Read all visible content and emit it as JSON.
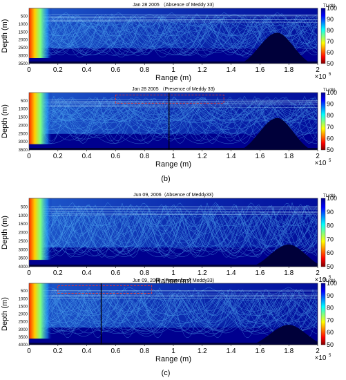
{
  "chart_data": [
    {
      "type": "heatmap",
      "title": "Jan 28 2005 （Absence of Meddy 33)",
      "xlabel": "Range (m)",
      "ylabel": "Depth (m)",
      "xlim": [
        0,
        200000
      ],
      "ylim": [
        0,
        3500
      ],
      "x_ticks": [
        "0",
        "0.2",
        "0.4",
        "0.6",
        "0.8",
        "1",
        "1.2",
        "1.4",
        "1.6",
        "1.8",
        "2"
      ],
      "x_multiplier": "×10",
      "x_multiplier_exp": "5",
      "y_ticks": [
        "500",
        "1000",
        "1500",
        "2000",
        "2500",
        "3000",
        "3500"
      ],
      "colorbar": {
        "label": "TL(db)",
        "ticks": [
          "100",
          "90",
          "80",
          "70",
          "60",
          "50"
        ],
        "range": [
          50,
          100
        ]
      },
      "bathymetry": {
        "seamount_peak_range": 172000,
        "seamount_peak_depth": 1550
      },
      "highlight_box": null,
      "marker_line_range": null
    },
    {
      "type": "heatmap",
      "title": "Jan 28 2005 （Presence of Meddy 33)",
      "xlabel": "Range (m)",
      "ylabel": "Depth (m)",
      "xlim": [
        0,
        200000
      ],
      "ylim": [
        0,
        3500
      ],
      "x_ticks": [
        "0",
        "0.2",
        "0.4",
        "0.6",
        "0.8",
        "1",
        "1.2",
        "1.4",
        "1.6",
        "1.8",
        "2"
      ],
      "x_multiplier": "×10",
      "x_multiplier_exp": "5",
      "y_ticks": [
        "500",
        "1000",
        "1500",
        "2000",
        "2500",
        "3000",
        "3500"
      ],
      "colorbar": {
        "label": "TL(db)",
        "ticks": [
          "100",
          "90",
          "80",
          "70",
          "60",
          "50"
        ],
        "range": [
          50,
          100
        ]
      },
      "bathymetry": {
        "seamount_peak_range": 172000,
        "seamount_peak_depth": 1550
      },
      "highlight_box": {
        "x0": 60000,
        "x1": 135000,
        "y0": 150,
        "y1": 650,
        "color": "#e03030"
      },
      "marker_line_range": 97000
    },
    {
      "type": "heatmap",
      "title": "Jun 09, 2006（Absence of Meddy33)",
      "xlabel": "Range (m)",
      "ylabel": "Depth (m)",
      "xlim": [
        0,
        200000
      ],
      "ylim": [
        0,
        4000
      ],
      "x_ticks": [
        "0",
        "0.2",
        "0.4",
        "0.6",
        "0.8",
        "1",
        "1.2",
        "1.4",
        "1.6",
        "1.8",
        "2"
      ],
      "x_multiplier": "×10",
      "x_multiplier_exp": "5",
      "y_ticks": [
        "500",
        "1000",
        "1500",
        "2000",
        "2500",
        "3000",
        "3500",
        "4000"
      ],
      "colorbar": {
        "label": "TL(db)",
        "ticks": [
          "100",
          "90",
          "80",
          "70",
          "60",
          "50"
        ],
        "range": [
          50,
          100
        ]
      },
      "bathymetry": {
        "seamount_peak_range": 180000,
        "seamount_peak_depth": 2700
      },
      "highlight_box": null,
      "marker_line_range": null
    },
    {
      "type": "heatmap",
      "title": "Jun 09, 2006（Presence of Meddy33)",
      "xlabel": "Range (m)",
      "ylabel": "Depth (m)",
      "xlim": [
        0,
        200000
      ],
      "ylim": [
        0,
        4000
      ],
      "x_ticks": [
        "0",
        "0.2",
        "0.4",
        "0.6",
        "0.8",
        "1",
        "1.2",
        "1.4",
        "1.6",
        "1.8",
        "2"
      ],
      "x_multiplier": "×10",
      "x_multiplier_exp": "5",
      "y_ticks": [
        "500",
        "1000",
        "1500",
        "2000",
        "2500",
        "3000",
        "3500",
        "4000"
      ],
      "colorbar": {
        "label": "TL(db)",
        "ticks": [
          "100",
          "90",
          "80",
          "70",
          "60",
          "50"
        ],
        "range": [
          50,
          100
        ]
      },
      "bathymetry": {
        "seamount_peak_range": 180000,
        "seamount_peak_depth": 2700
      },
      "highlight_box": {
        "x0": 20000,
        "x1": 85000,
        "y0": 150,
        "y1": 650,
        "color": "#e03030"
      },
      "marker_line_range": 50000
    }
  ],
  "panel_labels": [
    "(b)",
    "(c)"
  ],
  "colors": {
    "background": "#00008f",
    "ray": "#5fc8ff",
    "source_hot": "#ff3000"
  }
}
